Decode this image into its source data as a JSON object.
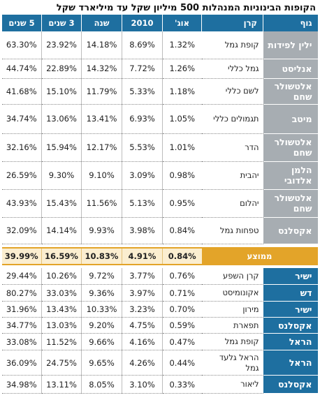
{
  "title": "הקופות הבינוניות המנהלות 500 מיליון שקל עד מיליארד שקל",
  "headers": {
    "group": "גוף",
    "fund": "קרן",
    "aug": "אוג'",
    "y2010": "2010",
    "year": "שנה",
    "y3": "3 שנים",
    "y5": "5 שנים"
  },
  "rows_top": [
    {
      "group": "ילין לפידות",
      "fund": "קופת גמל",
      "aug": "1.32%",
      "y2010": "8.69%",
      "year": "14.18%",
      "y3": "23.92%",
      "y5": "63.30%"
    },
    {
      "group": "אנליסט",
      "fund": "גמל כללי",
      "aug": "1.26%",
      "y2010": "7.72%",
      "year": "14.32%",
      "y3": "22.89%",
      "y5": "44.74%"
    },
    {
      "group": "אלטשולר שחם",
      "fund": "לשם כללי",
      "aug": "1.18%",
      "y2010": "5.33%",
      "year": "11.79%",
      "y3": "15.10%",
      "y5": "41.68%"
    },
    {
      "group": "מיטב",
      "fund": "תגמולים כללי",
      "aug": "1.05%",
      "y2010": "6.93%",
      "year": "13.41%",
      "y3": "13.06%",
      "y5": "34.74%"
    },
    {
      "group": "אלטשולר שחם",
      "fund": "הדר",
      "aug": "1.01%",
      "y2010": "5.53%",
      "year": "12.17%",
      "y3": "15.94%",
      "y5": "32.16%"
    },
    {
      "group": "הלמן אלדובי",
      "fund": "יהבית",
      "aug": "0.98%",
      "y2010": "3.09%",
      "year": "9.10%",
      "y3": "9.30%",
      "y5": "26.59%"
    },
    {
      "group": "אלטשולר שחם",
      "fund": "יהלום",
      "aug": "0.95%",
      "y2010": "5.13%",
      "year": "11.56%",
      "y3": "15.43%",
      "y5": "43.93%"
    },
    {
      "group": "אקסלנס",
      "fund": "טפחות גמל",
      "aug": "0.84%",
      "y2010": "3.98%",
      "year": "9.93%",
      "y3": "14.14%",
      "y5": "32.09%"
    }
  ],
  "average": {
    "label": "ממוצע",
    "aug": "0.84%",
    "y2010": "4.91%",
    "year": "10.83%",
    "y3": "16.59%",
    "y5": "39.99%"
  },
  "rows_bottom": [
    {
      "group": "ישיר",
      "fund": "קרן השפע",
      "aug": "0.76%",
      "y2010": "3.77%",
      "year": "9.72%",
      "y3": "10.26%",
      "y5": "29.44%"
    },
    {
      "group": "דש",
      "fund": "אקונומיסט",
      "aug": "0.71%",
      "y2010": "3.97%",
      "year": "9.36%",
      "y3": "33.03%",
      "y5": "80.27%"
    },
    {
      "group": "ישיר",
      "fund": "מירון",
      "aug": "0.70%",
      "y2010": "3.23%",
      "year": "10.33%",
      "y3": "13.43%",
      "y5": "31.96%"
    },
    {
      "group": "אקסלנס",
      "fund": "תפארת",
      "aug": "0.59%",
      "y2010": "4.75%",
      "year": "9.20%",
      "y3": "13.03%",
      "y5": "34.77%"
    },
    {
      "group": "הראל",
      "fund": "קופת גמל",
      "aug": "0.47%",
      "y2010": "4.16%",
      "year": "9.66%",
      "y3": "11.52%",
      "y5": "33.08%"
    },
    {
      "group": "הראל",
      "fund": "הראל גלעד גמל",
      "aug": "0.44%",
      "y2010": "4.26%",
      "year": "9.65%",
      "y3": "24.75%",
      "y5": "36.09%"
    },
    {
      "group": "אקסלנס",
      "fund": "ליאור",
      "aug": "0.33%",
      "y2010": "3.10%",
      "year": "8.05%",
      "y3": "13.11%",
      "y5": "34.98%"
    }
  ]
}
